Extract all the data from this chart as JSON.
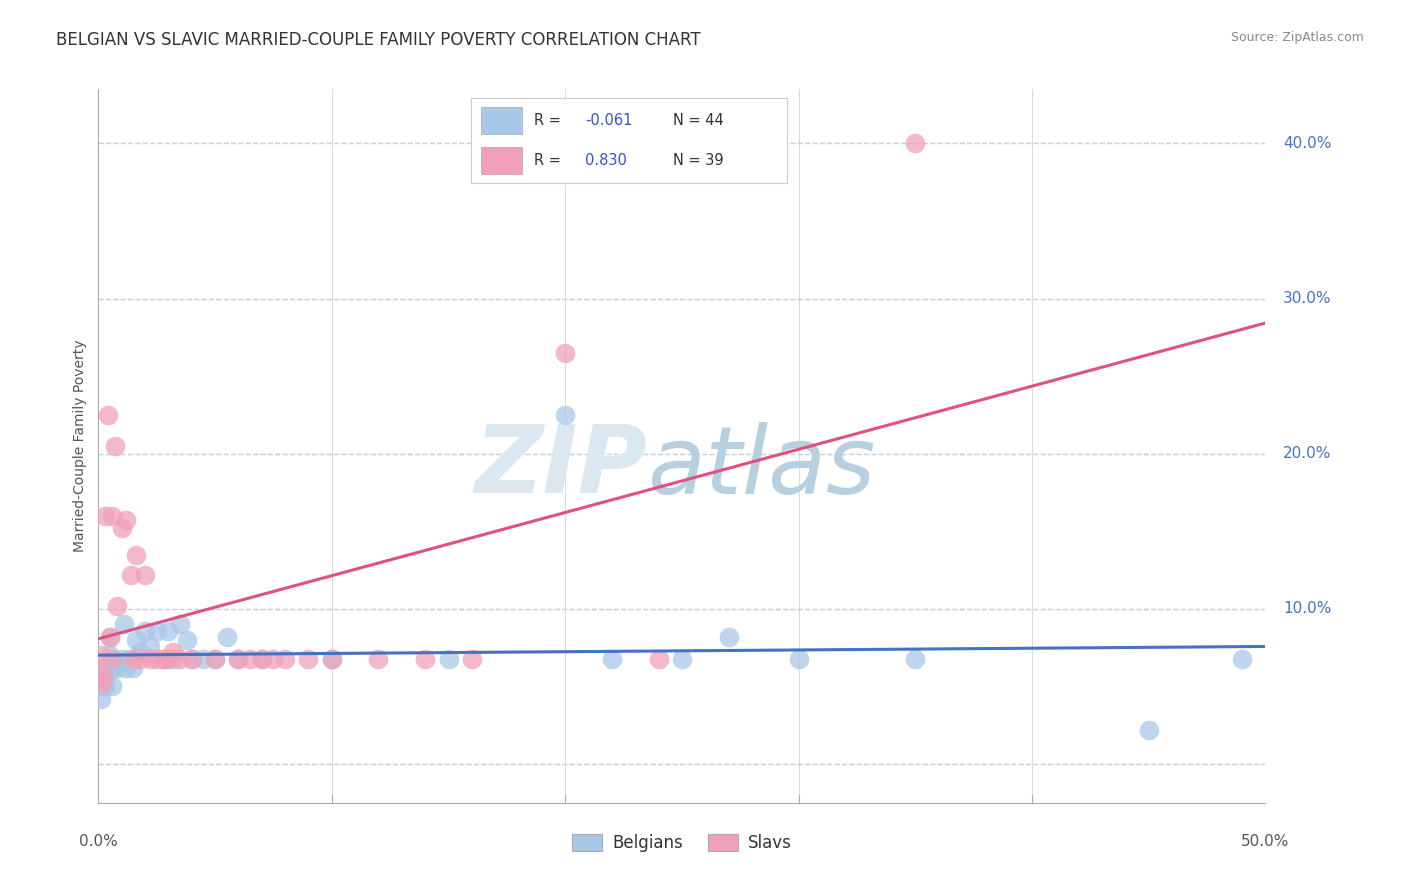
{
  "title": "BELGIAN VS SLAVIC MARRIED-COUPLE FAMILY POVERTY CORRELATION CHART",
  "source": "Source: ZipAtlas.com",
  "ylabel": "Married-Couple Family Poverty",
  "xmin": 0.0,
  "xmax": 0.5,
  "ymin": -0.025,
  "ymax": 0.435,
  "yticks": [
    0.0,
    0.1,
    0.2,
    0.3,
    0.4
  ],
  "ytick_labels": [
    "",
    "10.0%",
    "20.0%",
    "30.0%",
    "40.0%"
  ],
  "xtick_minor": [
    0.1,
    0.2,
    0.3,
    0.4
  ],
  "belgian_color": "#a8c8e8",
  "slavic_color": "#f0a0b8",
  "belgian_line_color": "#4472c4",
  "slavic_line_color": "#e05080",
  "background_color": "#ffffff",
  "grid_color": "#c0d0e0",
  "watermark_zip_color": "#dce8f0",
  "watermark_atlas_color": "#b8cfe0",
  "title_fontsize": 12,
  "axis_label_fontsize": 10,
  "tick_fontsize": 11,
  "belgian_x": [
    0.0,
    0.001,
    0.001,
    0.002,
    0.002,
    0.003,
    0.003,
    0.004,
    0.005,
    0.005,
    0.006,
    0.007,
    0.008,
    0.01,
    0.011,
    0.012,
    0.013,
    0.015,
    0.016,
    0.018,
    0.02,
    0.022,
    0.025,
    0.028,
    0.03,
    0.032,
    0.035,
    0.038,
    0.04,
    0.045,
    0.05,
    0.055,
    0.06,
    0.07,
    0.1,
    0.15,
    0.2,
    0.22,
    0.25,
    0.27,
    0.3,
    0.35,
    0.45,
    0.49
  ],
  "belgian_y": [
    0.06,
    0.05,
    0.042,
    0.062,
    0.052,
    0.055,
    0.05,
    0.06,
    0.07,
    0.082,
    0.05,
    0.062,
    0.062,
    0.068,
    0.09,
    0.062,
    0.068,
    0.062,
    0.08,
    0.072,
    0.086,
    0.076,
    0.086,
    0.068,
    0.086,
    0.068,
    0.09,
    0.08,
    0.068,
    0.068,
    0.068,
    0.082,
    0.068,
    0.068,
    0.068,
    0.068,
    0.225,
    0.068,
    0.068,
    0.082,
    0.068,
    0.068,
    0.022,
    0.068
  ],
  "slavic_x": [
    0.0,
    0.001,
    0.001,
    0.002,
    0.003,
    0.004,
    0.005,
    0.006,
    0.006,
    0.007,
    0.008,
    0.01,
    0.012,
    0.014,
    0.015,
    0.016,
    0.018,
    0.02,
    0.022,
    0.025,
    0.028,
    0.03,
    0.032,
    0.035,
    0.04,
    0.05,
    0.06,
    0.065,
    0.07,
    0.075,
    0.08,
    0.09,
    0.1,
    0.12,
    0.14,
    0.16,
    0.2,
    0.24,
    0.35
  ],
  "slavic_y": [
    0.062,
    0.052,
    0.07,
    0.056,
    0.16,
    0.225,
    0.082,
    0.16,
    0.068,
    0.205,
    0.102,
    0.152,
    0.157,
    0.122,
    0.068,
    0.135,
    0.068,
    0.122,
    0.068,
    0.068,
    0.068,
    0.068,
    0.072,
    0.068,
    0.068,
    0.068,
    0.068,
    0.068,
    0.068,
    0.068,
    0.068,
    0.068,
    0.068,
    0.068,
    0.068,
    0.068,
    0.265,
    0.068,
    0.4
  ]
}
